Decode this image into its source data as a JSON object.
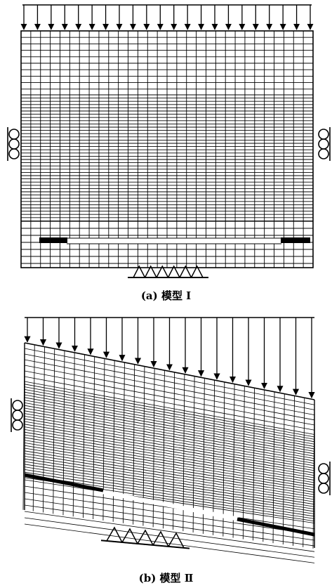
{
  "panels": [
    {
      "id": "a",
      "caption": "(a) 模型 Ⅰ"
    },
    {
      "id": "b",
      "caption": "(b) 模型 Ⅱ"
    }
  ]
}
